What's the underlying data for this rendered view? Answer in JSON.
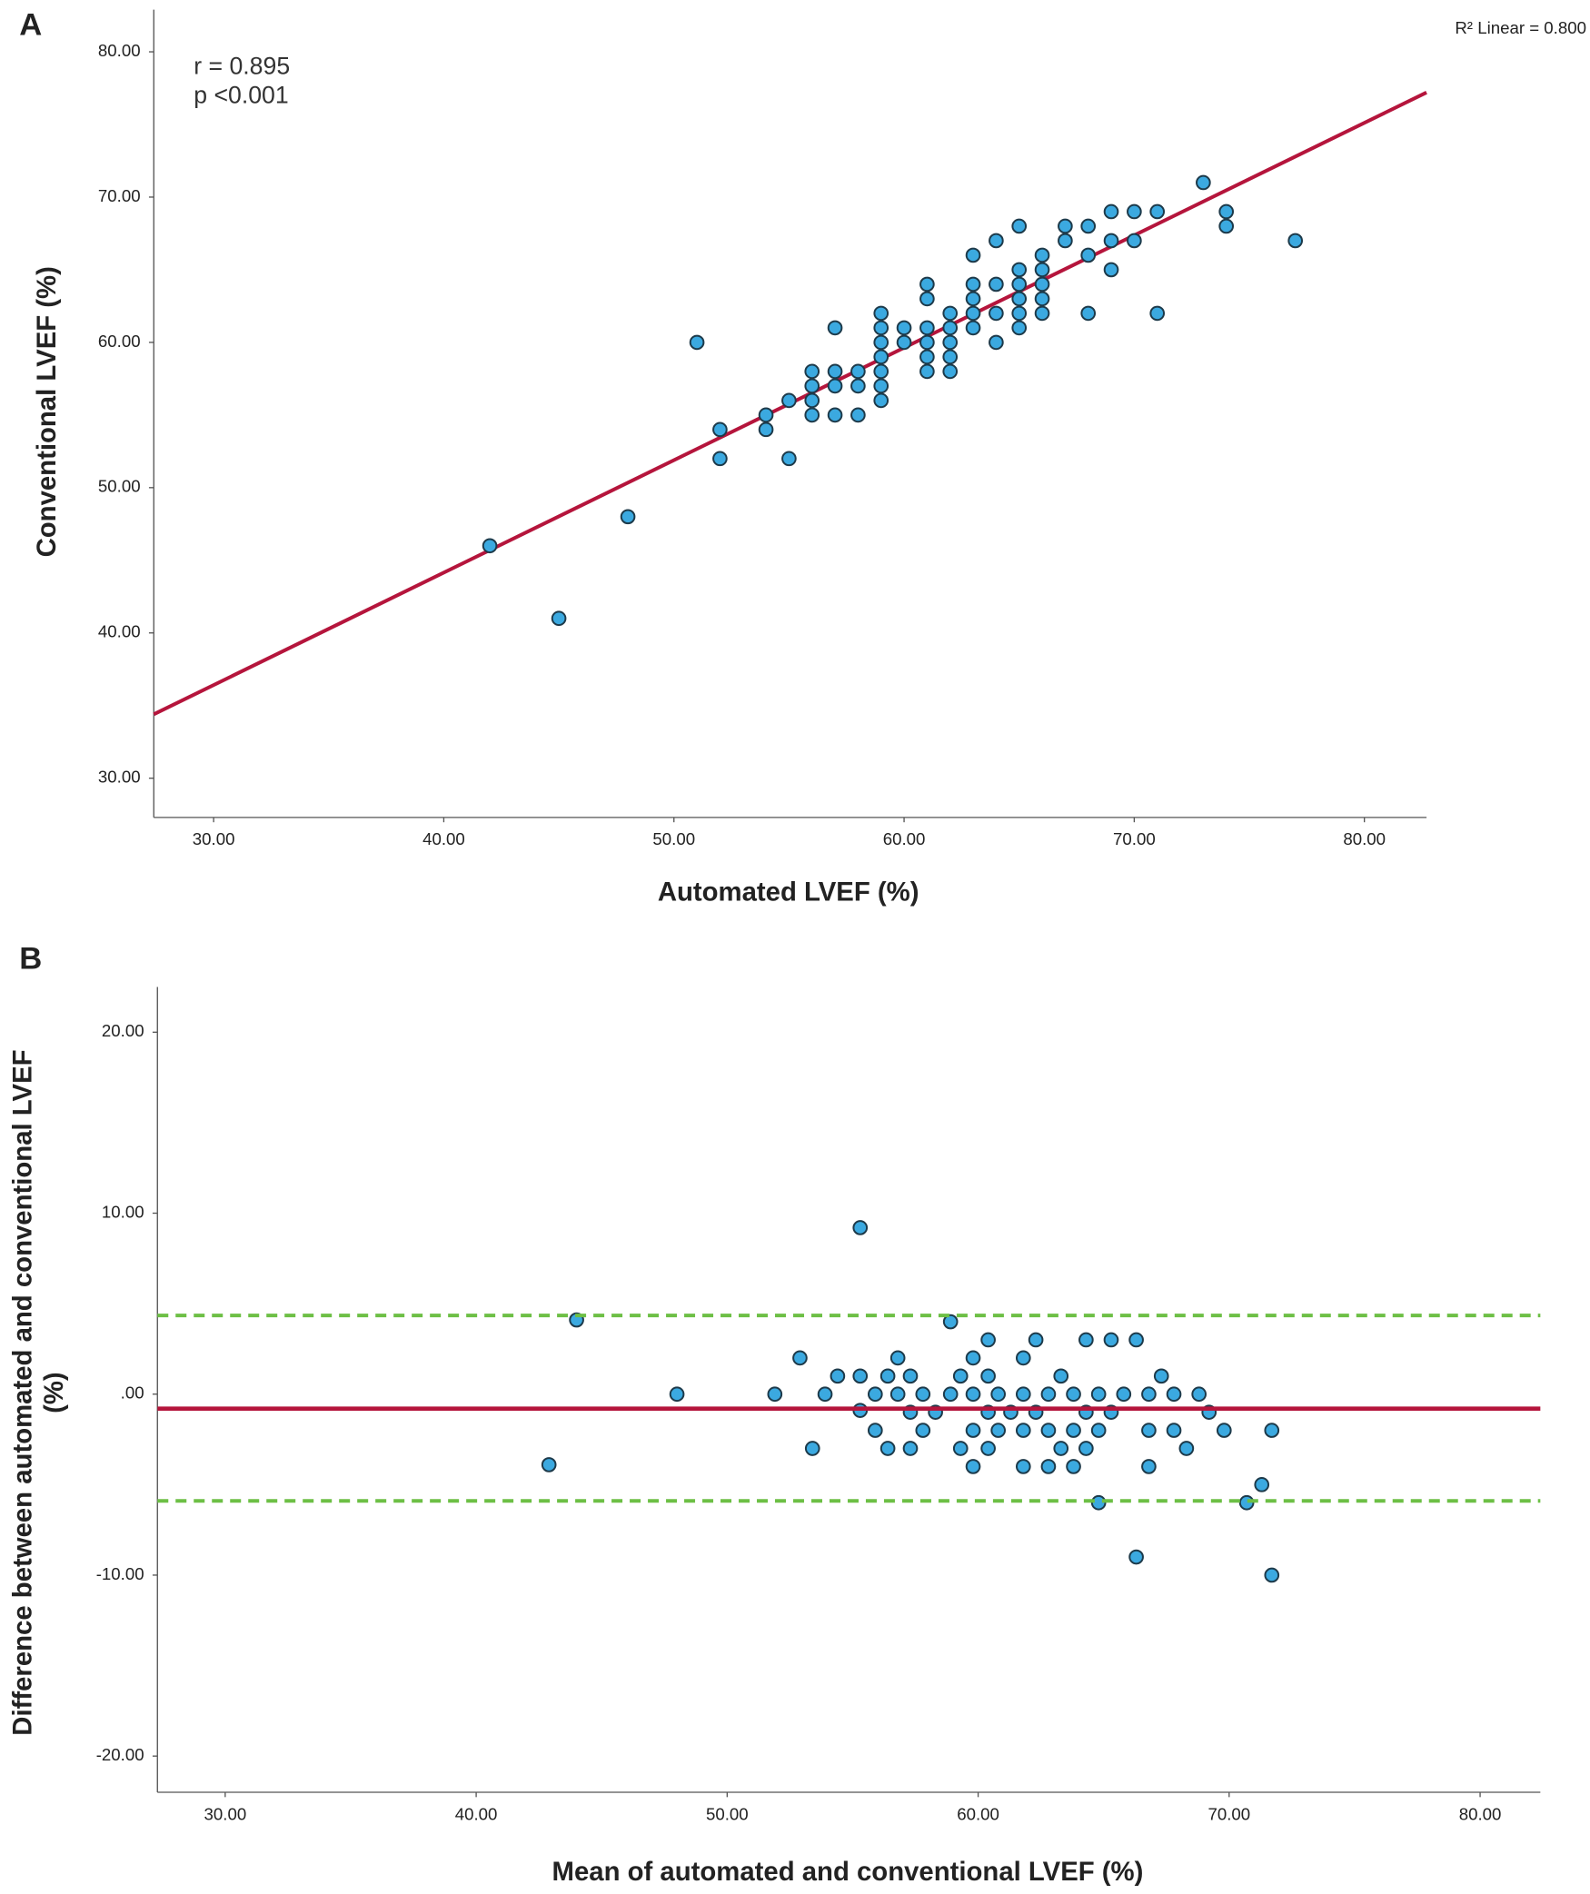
{
  "chart_data": [
    {
      "type": "scatter",
      "panel": "A",
      "xlabel": "Automated LVEF (%)",
      "ylabel": [
        "Conventional LVEF (%)"
      ],
      "annotations": [
        "r = 0.895",
        "p <0.001",
        "R² Linear = 0.800"
      ],
      "xlim": [
        27.4,
        82.7
      ],
      "ylim": [
        27.3,
        82.9
      ],
      "xticks": [
        {
          "value": 30,
          "label": "30.00"
        },
        {
          "value": 40,
          "label": "40.00"
        },
        {
          "value": 50,
          "label": "50.00"
        },
        {
          "value": 60,
          "label": "60.00"
        },
        {
          "value": 70,
          "label": "70.00"
        },
        {
          "value": 80,
          "label": "80.00"
        }
      ],
      "yticks": [
        {
          "value": 30,
          "label": "30.00"
        },
        {
          "value": 40,
          "label": "40.00"
        },
        {
          "value": 50,
          "label": "50.00"
        },
        {
          "value": 60,
          "label": "60.00"
        },
        {
          "value": 70,
          "label": "70.00"
        },
        {
          "value": 80,
          "label": "80.00"
        }
      ],
      "fit_line": {
        "color": "#b5153c",
        "x": [
          27.4,
          82.7
        ],
        "y": [
          34.4,
          77.2
        ]
      },
      "series": [
        {
          "color": "#3ba9e0",
          "x": [
            42,
            45,
            48,
            51,
            52,
            52,
            54,
            54,
            55,
            55,
            56,
            56,
            56,
            56,
            57,
            57,
            57,
            57,
            58,
            58,
            58,
            59,
            59,
            59,
            59,
            59,
            59,
            59,
            60,
            60,
            61,
            61,
            61,
            61,
            61,
            61,
            62,
            62,
            62,
            62,
            62,
            63,
            63,
            63,
            63,
            63,
            64,
            64,
            64,
            64,
            65,
            65,
            65,
            65,
            65,
            65,
            66,
            66,
            66,
            66,
            66,
            67,
            67,
            68,
            68,
            68,
            69,
            69,
            69,
            70,
            70,
            71,
            71,
            73,
            74,
            74,
            77
          ],
          "values": [
            46,
            41,
            48,
            60,
            54,
            52,
            55,
            54,
            56,
            52,
            58,
            57,
            56,
            55,
            61,
            58,
            57,
            55,
            58,
            57,
            55,
            62,
            61,
            60,
            59,
            58,
            57,
            56,
            61,
            60,
            64,
            63,
            61,
            60,
            59,
            58,
            62,
            61,
            60,
            59,
            58,
            66,
            64,
            63,
            62,
            61,
            67,
            64,
            62,
            60,
            68,
            65,
            64,
            63,
            62,
            61,
            66,
            65,
            64,
            63,
            62,
            68,
            67,
            68,
            66,
            62,
            69,
            67,
            65,
            69,
            67,
            69,
            62,
            71,
            69,
            68,
            67
          ]
        }
      ]
    },
    {
      "type": "scatter",
      "panel": "B",
      "xlabel": "Mean of automated and conventional LVEF (%)",
      "ylabel": [
        "Difference between automated and conventional LVEF",
        "(%)"
      ],
      "xlim": [
        27.3,
        82.4
      ],
      "ylim": [
        -22.0,
        22.5
      ],
      "xticks": [
        {
          "value": 30,
          "label": "30.00"
        },
        {
          "value": 40,
          "label": "40.00"
        },
        {
          "value": 50,
          "label": "50.00"
        },
        {
          "value": 60,
          "label": "60.00"
        },
        {
          "value": 70,
          "label": "70.00"
        },
        {
          "value": 80,
          "label": "80.00"
        }
      ],
      "yticks": [
        {
          "value": -20,
          "label": "-20.00"
        },
        {
          "value": -10,
          "label": "-10.00"
        },
        {
          "value": 0,
          "label": ".00"
        },
        {
          "value": 10,
          "label": "10.00"
        },
        {
          "value": 20,
          "label": "20.00"
        }
      ],
      "hlines": [
        {
          "value": -0.8,
          "color": "#b5153c",
          "style": "solid"
        },
        {
          "value": 4.35,
          "color": "#6dbf45",
          "style": "dashed"
        },
        {
          "value": -5.9,
          "color": "#6dbf45",
          "style": "dashed"
        }
      ],
      "series": [
        {
          "color": "#3ba9e0",
          "x": [
            42.9,
            44,
            48,
            51.9,
            52.9,
            53.4,
            53.9,
            54.4,
            55.3,
            55.3,
            55.3,
            55.9,
            55.9,
            56.4,
            56.4,
            56.8,
            56.8,
            57.3,
            57.3,
            57.3,
            57.8,
            57.8,
            58.3,
            58.9,
            58.9,
            59.3,
            59.3,
            59.8,
            59.8,
            59.8,
            59.8,
            60.4,
            60.4,
            60.4,
            60.4,
            60.8,
            60.8,
            61.3,
            61.8,
            61.8,
            61.8,
            61.8,
            62.3,
            62.3,
            62.8,
            62.8,
            62.8,
            63.3,
            63.3,
            63.8,
            63.8,
            63.8,
            64.3,
            64.3,
            64.3,
            64.8,
            64.8,
            64.8,
            65.3,
            65.3,
            65.8,
            66.3,
            66.3,
            66.8,
            66.8,
            66.8,
            67.3,
            67.8,
            67.8,
            68.3,
            68.8,
            69.2,
            69.8,
            70.7,
            71.3,
            71.7,
            71.7
          ],
          "values": [
            -3.9,
            4.1,
            0,
            0,
            2,
            -3,
            0,
            1,
            9.2,
            1,
            -0.9,
            0,
            -2,
            1,
            -3,
            2,
            0,
            1,
            -1,
            -3,
            0,
            -2,
            -1,
            4,
            0,
            1,
            -3,
            2,
            0,
            -2,
            -4,
            3,
            1,
            -1,
            -3,
            0,
            -2,
            -1,
            2,
            0,
            -2,
            -4,
            3,
            -1,
            0,
            -2,
            -4,
            1,
            -3,
            0,
            -2,
            -4,
            3,
            -1,
            -3,
            0,
            -2,
            -6,
            3,
            -1,
            0,
            3,
            -9,
            0,
            -2,
            -4,
            1,
            0,
            -2,
            -3,
            0,
            -1,
            -2,
            -6,
            -5,
            -2,
            -10
          ]
        }
      ]
    }
  ]
}
